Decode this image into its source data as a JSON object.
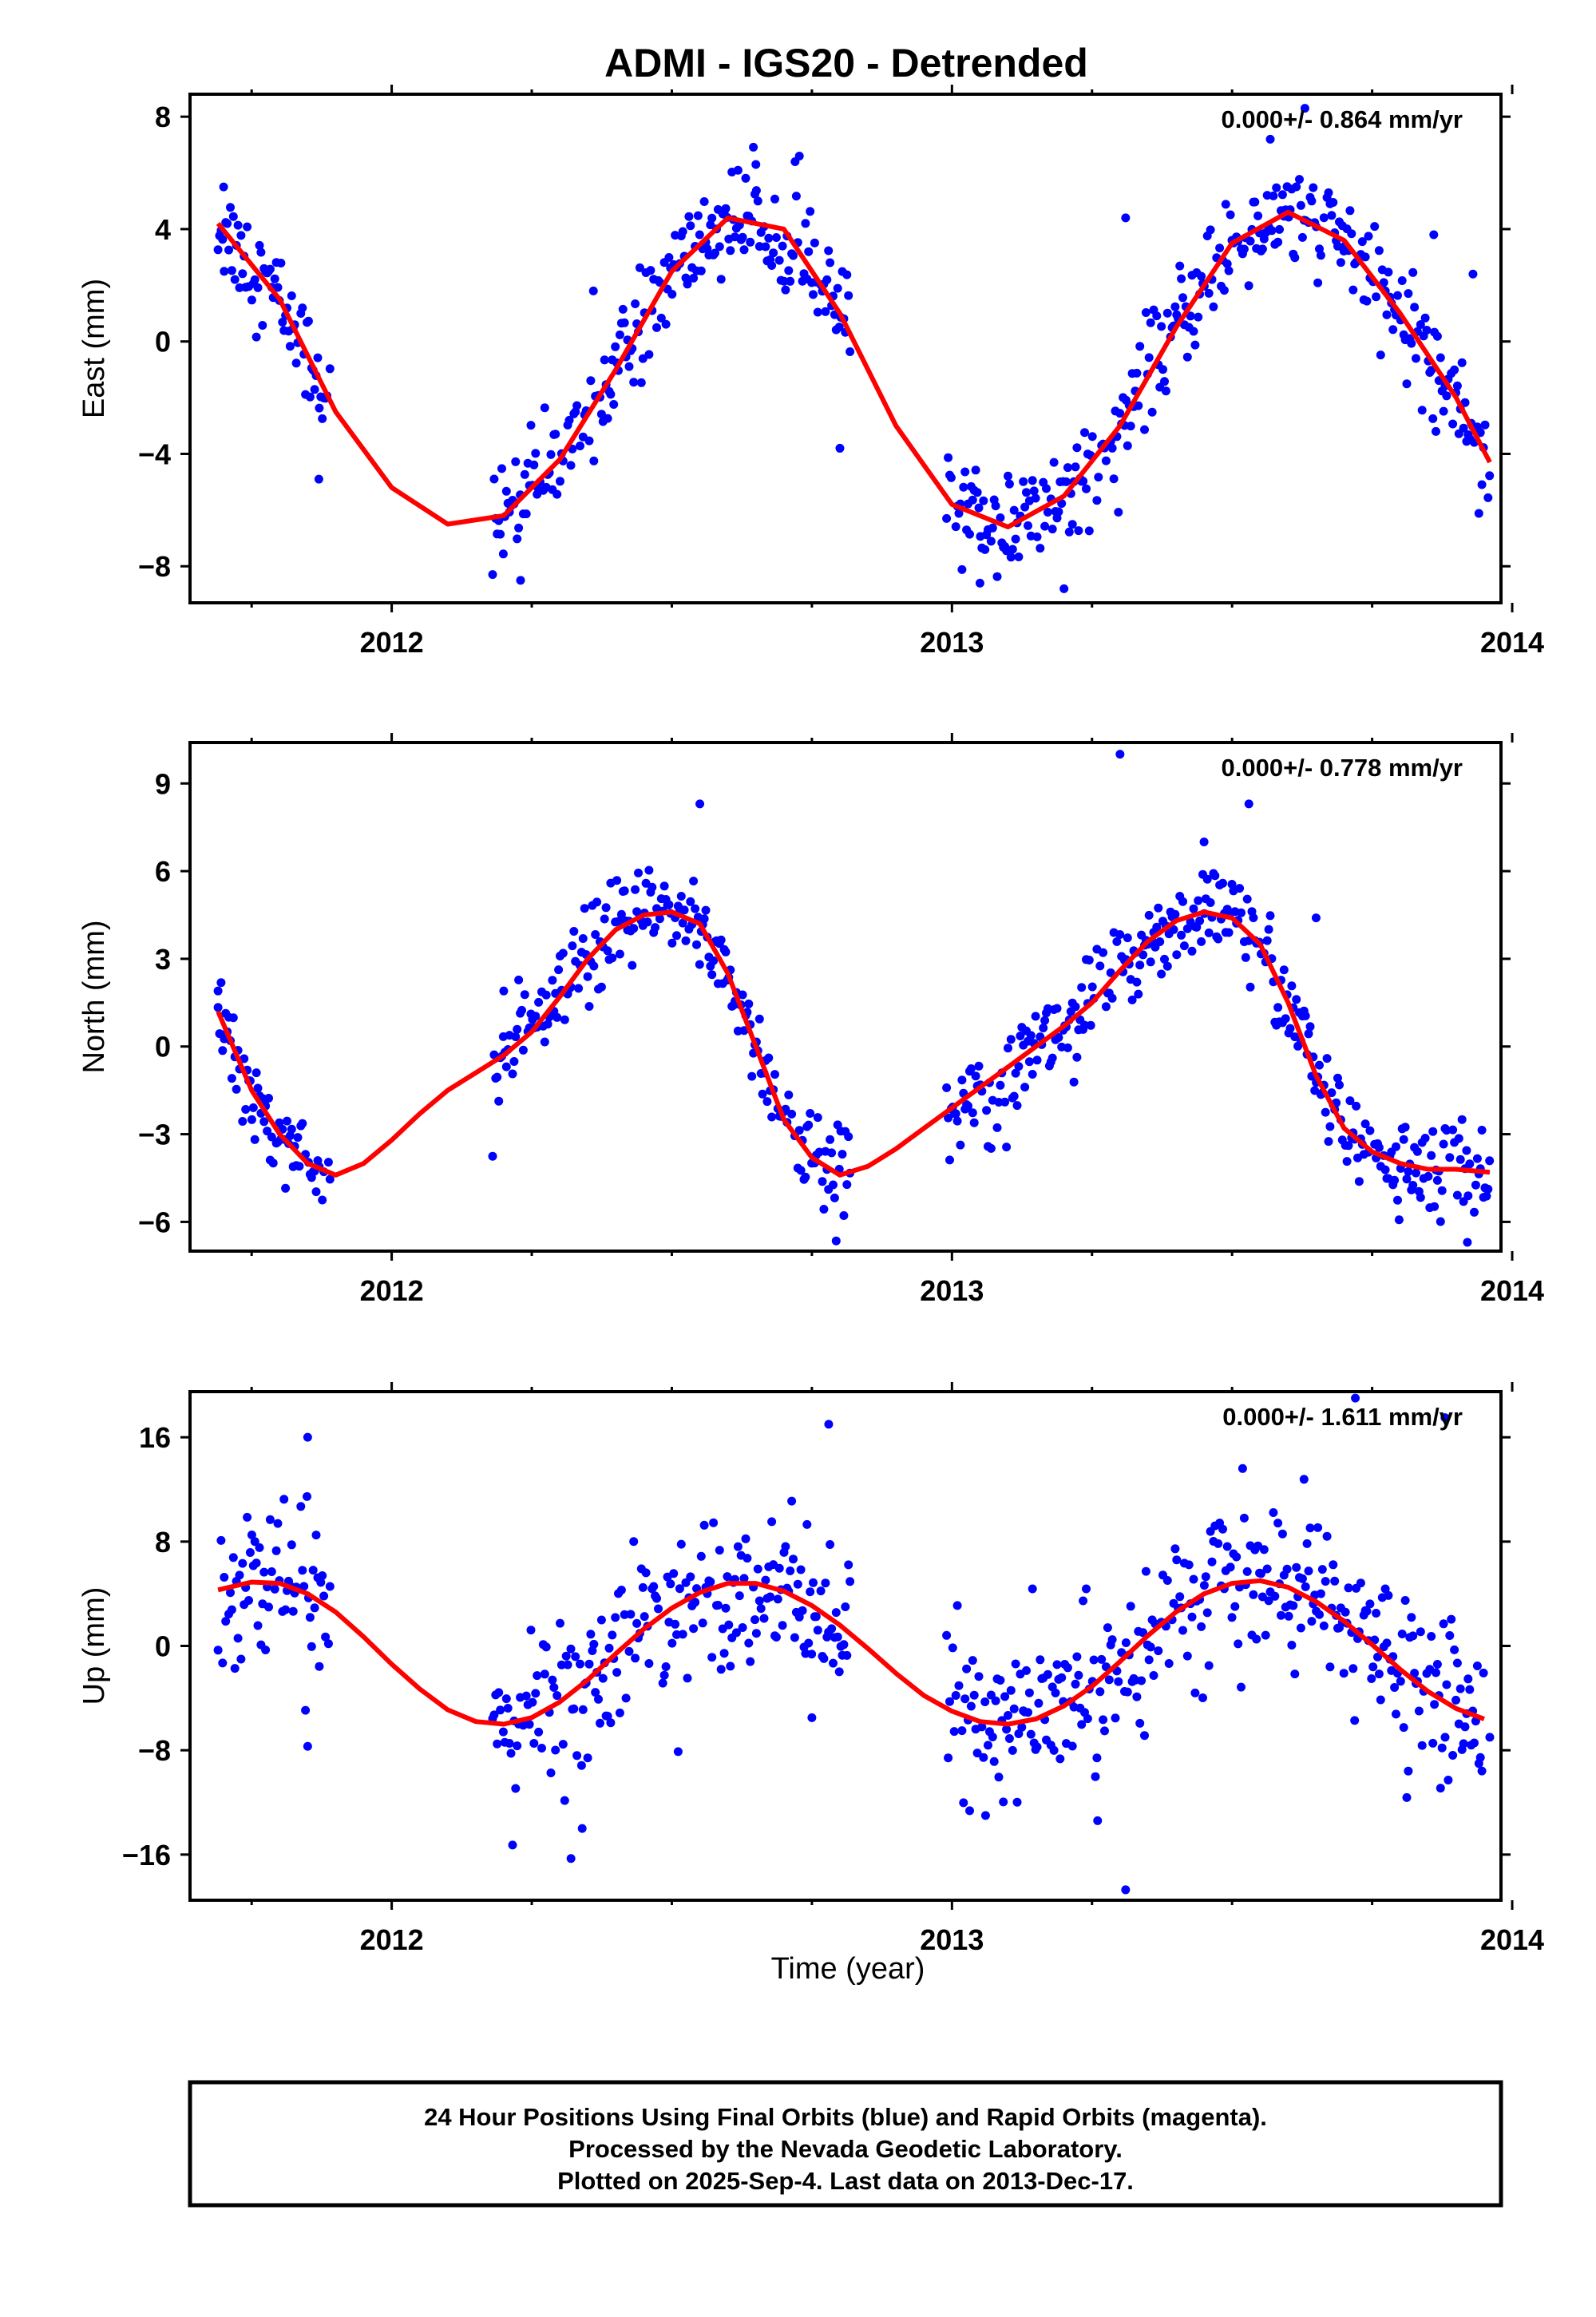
{
  "footer": {
    "line1": "24 Hour Positions Using Final Orbits (blue) and Rapid Orbits (magenta).",
    "line2": "Processed by the Nevada Geodetic Laboratory.",
    "line3": "Plotted on 2025-Sep-4. Last data on 2013-Dec-17."
  },
  "colors": {
    "points": "#0000ff",
    "model": "#ff0000",
    "axis": "#000000"
  },
  "chart_data": {
    "type": "scatter",
    "title": "ADMI - IGS20 - Detrended",
    "xlabel": "Time (year)",
    "xlim": [
      2011.64,
      2013.98
    ],
    "xticks": [
      2012,
      2013,
      2014
    ],
    "xtick_labels": [
      "2012",
      "2013",
      "2014"
    ],
    "data_gaps": [
      [
        2011.89,
        2012.18
      ],
      [
        2012.82,
        2012.99
      ]
    ],
    "panels": [
      {
        "component": "East",
        "ylabel": "East (mm)",
        "ylim": [
          -9.3,
          8.8
        ],
        "yticks": [
          -8,
          -4,
          0,
          4,
          8
        ],
        "ytick_labels": [
          "−8",
          "−4",
          "0",
          "4",
          "8"
        ],
        "rate_text": "0.000+/- 0.864 mm/yr",
        "scatter_sd": 0.9,
        "model": {
          "x": [
            2011.69,
            2011.8,
            2011.9,
            2012.0,
            2012.1,
            2012.2,
            2012.3,
            2012.4,
            2012.5,
            2012.6,
            2012.7,
            2012.8,
            2012.9,
            2013.0,
            2013.1,
            2013.2,
            2013.3,
            2013.4,
            2013.5,
            2013.6,
            2013.7,
            2013.8,
            2013.9,
            2013.96
          ],
          "y": [
            4.2,
            1.5,
            -2.5,
            -5.2,
            -6.5,
            -6.2,
            -4.2,
            -1.0,
            2.5,
            4.4,
            4.0,
            1.0,
            -3.0,
            -5.8,
            -6.6,
            -5.5,
            -3.0,
            0.5,
            3.5,
            4.6,
            3.6,
            1.0,
            -2.0,
            -4.3
          ]
        },
        "points": [
          {
            "x": 2011.7,
            "y": 5.5
          },
          {
            "x": 2011.87,
            "y": -4.9
          },
          {
            "x": 2012.23,
            "y": -8.5
          },
          {
            "x": 2012.36,
            "y": 1.8
          },
          {
            "x": 2012.65,
            "y": 6.3
          },
          {
            "x": 2012.72,
            "y": 6.4
          },
          {
            "x": 2012.8,
            "y": -3.8
          },
          {
            "x": 2013.05,
            "y": -8.6
          },
          {
            "x": 2013.2,
            "y": -8.8
          },
          {
            "x": 2013.31,
            "y": 4.4
          },
          {
            "x": 2013.63,
            "y": 8.3
          },
          {
            "x": 2013.86,
            "y": 3.8
          },
          {
            "x": 2013.93,
            "y": 2.4
          }
        ]
      },
      {
        "component": "North",
        "ylabel": "North (mm)",
        "ylim": [
          -7.0,
          10.4
        ],
        "yticks": [
          -6,
          -3,
          0,
          3,
          6,
          9
        ],
        "ytick_labels": [
          "−6",
          "−3",
          "0",
          "3",
          "6",
          "9"
        ],
        "rate_text": "0.000+/- 0.778 mm/yr",
        "scatter_sd": 0.8,
        "model": {
          "x": [
            2011.69,
            2011.75,
            2011.8,
            2011.85,
            2011.9,
            2011.95,
            2012.0,
            2012.05,
            2012.1,
            2012.15,
            2012.2,
            2012.25,
            2012.3,
            2012.35,
            2012.4,
            2012.45,
            2012.5,
            2012.55,
            2012.6,
            2012.65,
            2012.7,
            2012.75,
            2012.8,
            2012.85,
            2012.9,
            2012.95,
            2013.0,
            2013.05,
            2013.1,
            2013.15,
            2013.2,
            2013.25,
            2013.3,
            2013.35,
            2013.4,
            2013.45,
            2013.5,
            2013.55,
            2013.6,
            2013.65,
            2013.7,
            2013.75,
            2013.8,
            2013.85,
            2013.9,
            2013.96
          ],
          "y": [
            1.2,
            -1.5,
            -3.0,
            -4.0,
            -4.4,
            -4.0,
            -3.2,
            -2.3,
            -1.5,
            -0.9,
            -0.3,
            0.5,
            1.7,
            3.0,
            4.0,
            4.5,
            4.6,
            4.2,
            2.5,
            0.0,
            -2.5,
            -3.8,
            -4.4,
            -4.1,
            -3.5,
            -2.8,
            -2.1,
            -1.4,
            -0.7,
            0.0,
            0.7,
            1.5,
            2.6,
            3.6,
            4.3,
            4.6,
            4.4,
            3.5,
            1.5,
            -1.0,
            -2.8,
            -3.6,
            -4.0,
            -4.2,
            -4.2,
            -4.3
          ]
        },
        "points": [
          {
            "x": 2011.69,
            "y": 1.9
          },
          {
            "x": 2012.2,
            "y": 1.9
          },
          {
            "x": 2012.55,
            "y": 8.3
          },
          {
            "x": 2013.3,
            "y": 10.0
          },
          {
            "x": 2013.45,
            "y": 7.0
          },
          {
            "x": 2013.53,
            "y": 8.3
          },
          {
            "x": 2013.65,
            "y": 4.4
          },
          {
            "x": 2013.92,
            "y": -6.7
          }
        ]
      },
      {
        "component": "Up",
        "ylabel": "Up (mm)",
        "ylim": [
          -19.5,
          19.5
        ],
        "yticks": [
          -16,
          -8,
          0,
          8,
          16
        ],
        "ytick_labels": [
          "−16",
          "−8",
          "0",
          "8",
          "16"
        ],
        "rate_text": "0.000+/- 1.611 mm/yr",
        "scatter_sd": 3.0,
        "model": {
          "x": [
            2011.69,
            2011.75,
            2011.8,
            2011.85,
            2011.9,
            2011.95,
            2012.0,
            2012.05,
            2012.1,
            2012.15,
            2012.2,
            2012.25,
            2012.3,
            2012.35,
            2012.4,
            2012.45,
            2012.5,
            2012.55,
            2012.6,
            2012.65,
            2012.7,
            2012.75,
            2012.8,
            2012.85,
            2012.9,
            2012.95,
            2013.0,
            2013.05,
            2013.1,
            2013.15,
            2013.2,
            2013.25,
            2013.3,
            2013.35,
            2013.4,
            2013.45,
            2013.5,
            2013.55,
            2013.6,
            2013.65,
            2013.7,
            2013.75,
            2013.8,
            2013.85,
            2013.9,
            2013.95
          ],
          "y": [
            4.3,
            4.9,
            4.8,
            4.0,
            2.6,
            0.7,
            -1.4,
            -3.3,
            -4.9,
            -5.8,
            -6.0,
            -5.5,
            -4.3,
            -2.6,
            -0.6,
            1.3,
            2.9,
            4.1,
            4.8,
            4.8,
            4.2,
            3.1,
            1.6,
            -0.2,
            -2.1,
            -3.8,
            -5.0,
            -5.8,
            -6.0,
            -5.6,
            -4.6,
            -3.1,
            -1.2,
            0.8,
            2.6,
            4.0,
            4.8,
            5.0,
            4.5,
            3.4,
            1.9,
            0.1,
            -1.8,
            -3.5,
            -4.8,
            -5.6
          ]
        },
        "points": [
          {
            "x": 2011.85,
            "y": 16.0
          },
          {
            "x": 2011.85,
            "y": -7.7
          },
          {
            "x": 2012.32,
            "y": -16.3
          },
          {
            "x": 2012.34,
            "y": -14.0
          },
          {
            "x": 2012.78,
            "y": 17.0
          },
          {
            "x": 2012.75,
            "y": -5.5
          },
          {
            "x": 2013.06,
            "y": -13.0
          },
          {
            "x": 2013.31,
            "y": -18.7
          },
          {
            "x": 2013.26,
            "y": -13.4
          },
          {
            "x": 2013.72,
            "y": 19.0
          },
          {
            "x": 2013.88,
            "y": 17.5
          },
          {
            "x": 2013.96,
            "y": -7.0
          }
        ]
      }
    ]
  }
}
